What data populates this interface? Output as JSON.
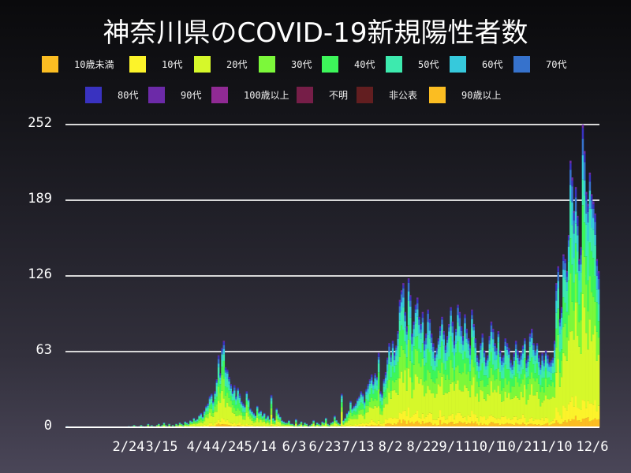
{
  "title": "神奈川県のCOVID-19新規陽性者数",
  "legend": [
    {
      "label": "10歳未満",
      "color": "#fbbd22"
    },
    {
      "label": "10代",
      "color": "#fcf32a"
    },
    {
      "label": "20代",
      "color": "#d6f82a"
    },
    {
      "label": "30代",
      "color": "#7cf83a"
    },
    {
      "label": "40代",
      "color": "#3df65a"
    },
    {
      "label": "50代",
      "color": "#3deaae"
    },
    {
      "label": "60代",
      "color": "#36c9dc"
    },
    {
      "label": "70代",
      "color": "#3672cc"
    },
    {
      "label": "80代",
      "color": "#3932c0"
    },
    {
      "label": "90代",
      "color": "#6c2aa8"
    },
    {
      "label": "100歳以上",
      "color": "#902a94"
    },
    {
      "label": "不明",
      "color": "#761e48"
    },
    {
      "label": "非公表",
      "color": "#621e20"
    },
    {
      "label": "90歳以上",
      "color": "#fbbd22"
    }
  ],
  "chart_data": {
    "type": "bar",
    "stacked": true,
    "title": "神奈川県のCOVID-19新規陽性者数",
    "xlabel": "",
    "ylabel": "",
    "ylim": [
      0,
      252
    ],
    "yticks": [
      0,
      63,
      126,
      189,
      252
    ],
    "xticks": [
      "2/24",
      "3/15",
      "4/4",
      "4/24",
      "5/14",
      "6/3",
      "6/23",
      "7/13",
      "8/2",
      "8/22",
      "9/11",
      "10/1",
      "10/21",
      "11/10",
      "12/6"
    ],
    "grid": "horizontal",
    "legend_position": "top",
    "series_names": [
      "10歳未満",
      "10代",
      "20代",
      "30代",
      "40代",
      "50代",
      "60代",
      "70代",
      "80代",
      "90代",
      "100歳以上",
      "不明",
      "非公表",
      "90歳以上"
    ],
    "x_start": "1/16",
    "x_end": "12/6",
    "daily_totals": [
      1,
      0,
      0,
      0,
      0,
      0,
      0,
      0,
      0,
      0,
      0,
      0,
      0,
      0,
      0,
      0,
      0,
      0,
      0,
      0,
      0,
      0,
      0,
      0,
      0,
      0,
      0,
      0,
      0,
      0,
      0,
      0,
      0,
      0,
      0,
      1,
      0,
      1,
      2,
      1,
      0,
      1,
      2,
      1,
      0,
      1,
      3,
      1,
      2,
      1,
      0,
      2,
      3,
      1,
      2,
      4,
      2,
      1,
      3,
      0,
      2,
      1,
      3,
      2,
      4,
      3,
      2,
      5,
      4,
      3,
      6,
      5,
      8,
      6,
      7,
      10,
      12,
      9,
      14,
      18,
      20,
      26,
      28,
      22,
      30,
      40,
      60,
      45,
      66,
      72,
      50,
      48,
      42,
      36,
      30,
      35,
      26,
      33,
      28,
      22,
      20,
      18,
      30,
      24,
      16,
      14,
      12,
      10,
      18,
      13,
      14,
      10,
      12,
      8,
      10,
      7,
      27,
      8,
      6,
      16,
      12,
      9,
      6,
      5,
      4,
      4,
      6,
      3,
      3,
      2,
      7,
      2,
      3,
      5,
      2,
      4,
      3,
      1,
      2,
      3,
      6,
      2,
      4,
      3,
      2,
      5,
      4,
      8,
      3,
      2,
      4,
      5,
      10,
      6,
      4,
      3,
      28,
      6,
      8,
      12,
      14,
      22,
      16,
      18,
      20,
      24,
      26,
      30,
      28,
      22,
      32,
      36,
      40,
      44,
      38,
      45,
      42,
      62,
      30,
      28,
      40,
      46,
      58,
      70,
      60,
      72,
      62,
      68,
      80,
      106,
      114,
      120,
      96,
      84,
      124,
      110,
      78,
      88,
      102,
      108,
      92,
      86,
      96,
      72,
      78,
      98,
      90,
      78,
      70,
      60,
      66,
      74,
      84,
      92,
      80,
      68,
      76,
      86,
      100,
      88,
      72,
      82,
      102,
      96,
      84,
      76,
      94,
      82,
      74,
      68,
      98,
      86,
      74,
      60,
      56,
      70,
      78,
      64,
      56,
      60,
      76,
      88,
      82,
      70,
      66,
      80,
      64,
      58,
      60,
      74,
      70,
      66,
      56,
      52,
      62,
      72,
      64,
      58,
      62,
      68,
      74,
      56,
      60,
      78,
      82,
      70,
      64,
      70,
      60,
      52,
      62,
      56,
      64,
      60,
      54,
      56,
      58,
      72,
      120,
      134,
      90,
      100,
      144,
      140,
      130,
      160,
      222,
      208,
      180,
      200,
      176,
      140,
      150,
      252,
      230,
      196,
      186,
      212,
      194,
      188,
      178,
      140,
      130
    ]
  }
}
